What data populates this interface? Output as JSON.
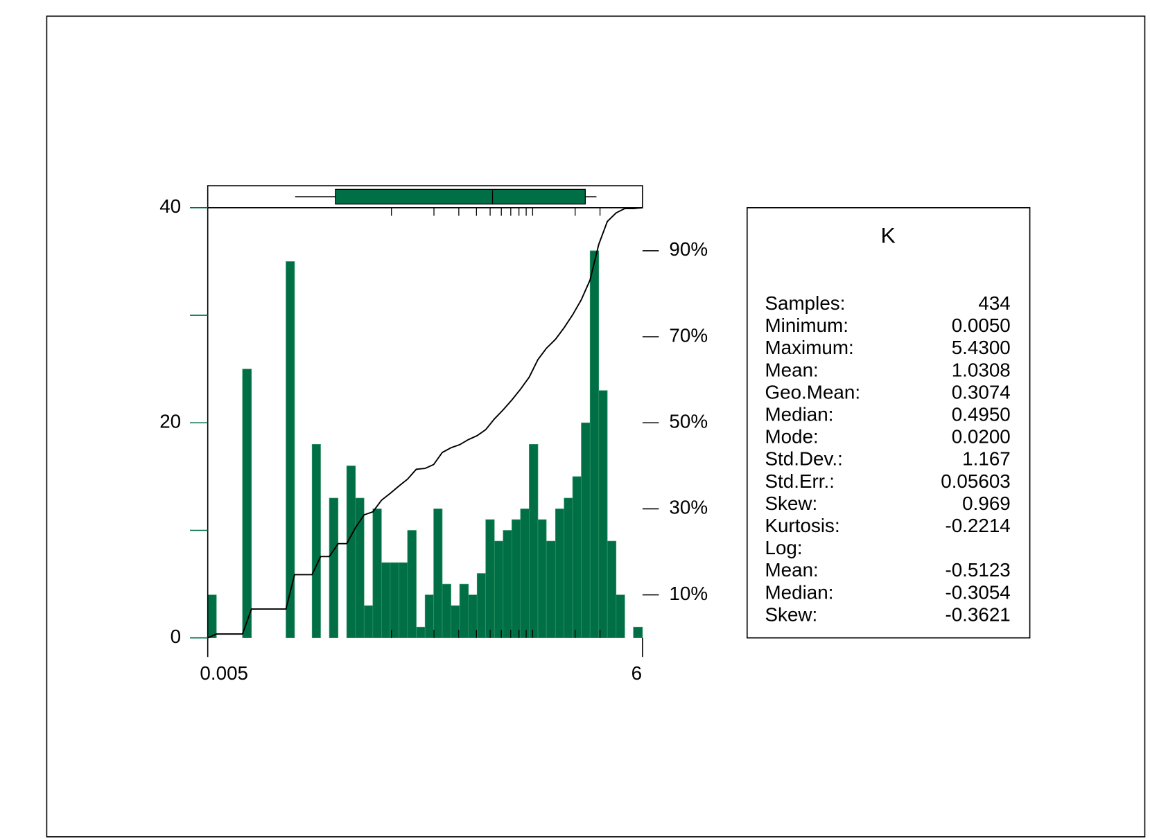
{
  "chart_data": {
    "type": "histogram",
    "xscale": "log",
    "bins": [
      0.005,
      0.00576,
      0.00664,
      0.00765,
      0.00881,
      0.0102,
      0.0117,
      0.0135,
      0.0155,
      0.0179,
      0.0206,
      0.0238,
      0.0274,
      0.0315,
      0.0363,
      0.0419,
      0.0482,
      0.0556,
      0.064,
      0.0738,
      0.085,
      0.098,
      0.113,
      0.13,
      0.15,
      0.173,
      0.199,
      0.229,
      0.264,
      0.304,
      0.351,
      0.404,
      0.465,
      0.536,
      0.618,
      0.712,
      0.82,
      0.945,
      1.09,
      1.25,
      1.45,
      1.67,
      1.92,
      2.21,
      2.55,
      2.94,
      3.38,
      3.9,
      4.49,
      5.17,
      6
    ],
    "values": [
      4,
      0,
      0,
      0,
      25,
      0,
      0,
      0,
      0,
      35,
      0,
      0,
      18,
      0,
      13,
      0,
      16,
      13,
      3,
      12,
      7,
      7,
      7,
      10,
      1,
      4,
      12,
      5,
      3,
      5,
      4,
      6,
      11,
      9,
      10,
      11,
      12,
      18,
      11,
      9,
      12,
      13,
      15,
      20,
      36,
      23,
      9,
      4,
      0,
      1
    ],
    "color": "#006f46",
    "xlim": [
      0.005,
      6
    ],
    "xticks": [
      0.005,
      6
    ],
    "xminorticks": [
      0.1,
      0.2,
      0.3,
      0.4,
      0.5,
      0.6,
      0.7,
      0.8,
      0.9,
      1,
      2,
      3
    ],
    "ylim": [
      0,
      40
    ],
    "yticks": [
      0,
      20,
      40
    ],
    "yminorticks": [
      10,
      30
    ],
    "y2lim": [
      0,
      100
    ],
    "y2ticks": [
      {
        "value": 10,
        "label": "10%"
      },
      {
        "value": 30,
        "label": "30%"
      },
      {
        "value": 50,
        "label": "50%"
      },
      {
        "value": 70,
        "label": "70%"
      },
      {
        "value": 90,
        "label": "90%"
      }
    ],
    "series": [
      {
        "type": "line",
        "axis": "y2",
        "color": "#000000",
        "values": [
          0,
          0.9,
          0.9,
          0.9,
          0.9,
          6.7,
          6.7,
          6.7,
          6.7,
          6.7,
          14.7,
          14.7,
          14.7,
          18.9,
          18.9,
          21.9,
          21.9,
          25.6,
          28.6,
          29.3,
          32.0,
          33.6,
          35.3,
          36.9,
          39.2,
          39.4,
          40.3,
          43.1,
          44.2,
          44.9,
          46.1,
          47.0,
          48.4,
          50.9,
          53.0,
          55.3,
          57.8,
          60.6,
          64.7,
          67.3,
          69.4,
          72.1,
          75.1,
          78.6,
          83.2,
          91.5,
          96.8,
          98.8,
          99.8,
          99.8,
          100
        ]
      }
    ],
    "boxplot": {
      "whisker_low": 0.0208,
      "q1": 0.0401,
      "median": 0.52,
      "q3": 2.36,
      "whisker_high": 2.83,
      "color": "#006f46"
    }
  },
  "stats_table": {
    "title": "K",
    "rows": [
      [
        "Samples:",
        "434"
      ],
      [
        "Minimum:",
        "0.0050"
      ],
      [
        "Maximum:",
        "5.4300"
      ],
      [
        "Mean:",
        "1.0308"
      ],
      [
        "Geo.Mean:",
        "0.3074"
      ],
      [
        "Median:",
        "0.4950"
      ],
      [
        "Mode:",
        "0.0200"
      ],
      [
        "Std.Dev.:",
        "1.167"
      ],
      [
        "Std.Err.:",
        "0.05603"
      ],
      [
        "Skew:",
        "0.969"
      ],
      [
        "Kurtosis:",
        "-0.2214"
      ],
      [
        "Log:",
        null
      ],
      [
        "Mean:",
        "-0.5123"
      ],
      [
        "Median:",
        "-0.3054"
      ],
      [
        "Skew:",
        "-0.3621"
      ]
    ]
  }
}
